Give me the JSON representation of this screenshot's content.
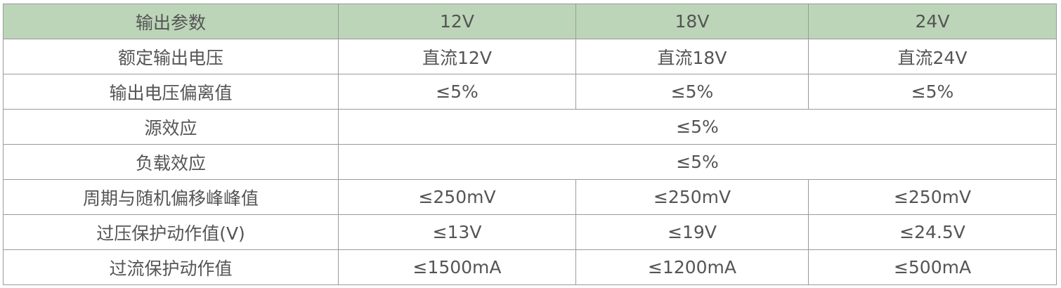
{
  "header": [
    "输出参数",
    "12V",
    "18V",
    "24V"
  ],
  "rows": [
    {
      "label": "额定输出电压",
      "values": [
        "直流12V",
        "直流18V",
        "直流24V"
      ]
    },
    {
      "label": "输出电压偏离值",
      "values": [
        "≤5%",
        "≤5%",
        "≤5%"
      ]
    },
    {
      "label": "源效应",
      "merged": "≤5%"
    },
    {
      "label": "负载效应",
      "merged": "≤5%"
    },
    {
      "label": "周期与随机偏移峰峰值",
      "values": [
        "≤250mV",
        "≤250mV",
        "≤250mV"
      ]
    },
    {
      "label": "过压保护动作值(V)",
      "values": [
        "≤13V",
        "≤19V",
        "≤24.5V"
      ]
    },
    {
      "label": "过流保护动作值",
      "values": [
        "≤1500mA",
        "≤1200mA",
        "≤500mA"
      ]
    }
  ],
  "colors": {
    "header_bg": "#bcd5b8",
    "text": "#555555",
    "border": "#9a9a9a"
  }
}
